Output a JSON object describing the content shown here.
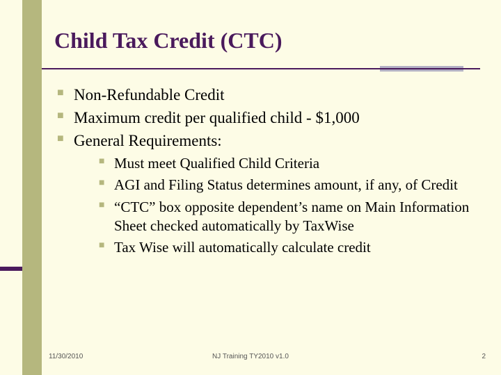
{
  "slide": {
    "title": "Child Tax Credit (CTC)",
    "colors": {
      "background": "#fdfce6",
      "sidebar": "#b5b77e",
      "title": "#4a1a5c",
      "rule": "#4a1a5c",
      "rule_accent": "#b3b0c4",
      "bullet": "#b5b77e"
    },
    "bullets_level1": [
      "Non-Refundable Credit",
      "Maximum credit per qualified child - $1,000",
      "General Requirements:"
    ],
    "bullets_level2": [
      "Must meet Qualified Child Criteria",
      "AGI and Filing Status determines amount, if any, of Credit",
      "“CTC” box opposite dependent’s name on Main Information Sheet checked automatically by TaxWise",
      "Tax Wise will automatically calculate credit"
    ]
  },
  "footer": {
    "date": "11/30/2010",
    "center": "NJ Training TY2010 v1.0",
    "page": "2"
  }
}
